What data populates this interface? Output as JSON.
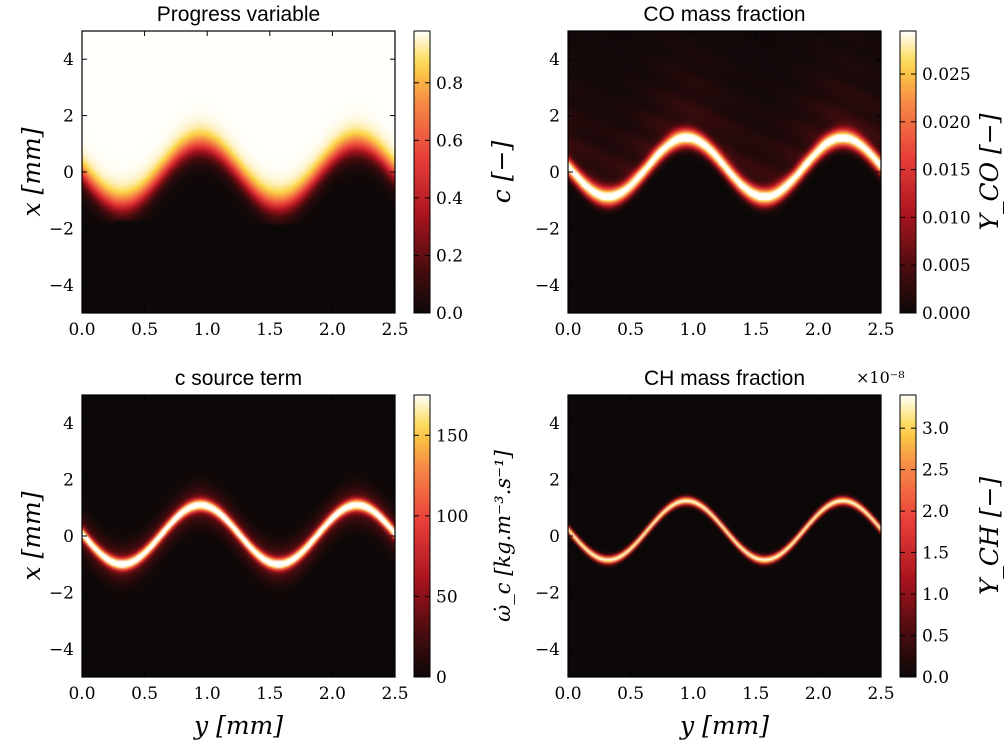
{
  "chart_data": [
    {
      "type": "heatmap",
      "title": "Progress variable",
      "xlabel": "",
      "ylabel": "x [mm]",
      "xlim": [
        0.0,
        2.5
      ],
      "ylim": [
        -5,
        5
      ],
      "xticks": [
        "0.0",
        "0.5",
        "1.0",
        "1.5",
        "2.0",
        "2.5"
      ],
      "yticks": [
        "4",
        "2",
        "0",
        "−2",
        "−4"
      ],
      "colorbar": {
        "label": "c [−]",
        "range": [
          0.0,
          0.98
        ],
        "ticks": [
          "0.0",
          "0.2",
          "0.4",
          "0.6",
          "0.8"
        ],
        "scale_note": ""
      },
      "field": "progress",
      "colormap": "hot"
    },
    {
      "type": "heatmap",
      "title": "CO mass fraction",
      "xlabel": "",
      "ylabel": "",
      "xlim": [
        0.0,
        2.5
      ],
      "ylim": [
        -5,
        5
      ],
      "xticks": [
        "0.0",
        "0.5",
        "1.0",
        "1.5",
        "2.0",
        "2.5"
      ],
      "yticks": [
        "4",
        "2",
        "0",
        "−2",
        "−4"
      ],
      "colorbar": {
        "label": "Y_CO [−]",
        "range": [
          0.0,
          0.0295
        ],
        "ticks": [
          "0.000",
          "0.005",
          "0.010",
          "0.015",
          "0.020",
          "0.025"
        ],
        "scale_note": ""
      },
      "field": "co",
      "colormap": "hot"
    },
    {
      "type": "heatmap",
      "title": "c source term",
      "xlabel": "y [mm]",
      "ylabel": "x [mm]",
      "xlim": [
        0.0,
        2.5
      ],
      "ylim": [
        -5,
        5
      ],
      "xticks": [
        "0.0",
        "0.5",
        "1.0",
        "1.5",
        "2.0",
        "2.5"
      ],
      "yticks": [
        "4",
        "2",
        "0",
        "−2",
        "−4"
      ],
      "colorbar": {
        "label": "ω̇_c [kg.m⁻³.s⁻¹]",
        "range": [
          0,
          175
        ],
        "ticks": [
          "0",
          "50",
          "100",
          "150"
        ],
        "scale_note": ""
      },
      "field": "source",
      "colormap": "hot"
    },
    {
      "type": "heatmap",
      "title": "CH mass fraction",
      "xlabel": "y [mm]",
      "ylabel": "",
      "xlim": [
        0.0,
        2.5
      ],
      "ylim": [
        -5,
        5
      ],
      "xticks": [
        "0.0",
        "0.5",
        "1.0",
        "1.5",
        "2.0",
        "2.5"
      ],
      "yticks": [
        "4",
        "2",
        "0",
        "−2",
        "−4"
      ],
      "colorbar": {
        "label": "Y_CH [−]",
        "range": [
          0.0,
          3.4
        ],
        "ticks": [
          "0.0",
          "0.5",
          "1.0",
          "1.5",
          "2.0",
          "2.5",
          "3.0"
        ],
        "scale_note": "×10⁻⁸"
      },
      "field": "ch",
      "colormap": "hot"
    }
  ]
}
